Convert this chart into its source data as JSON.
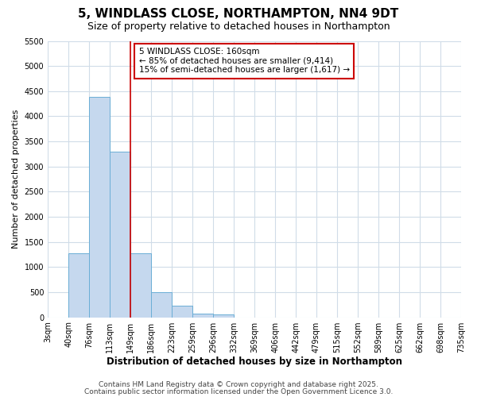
{
  "title": "5, WINDLASS CLOSE, NORTHAMPTON, NN4 9DT",
  "subtitle": "Size of property relative to detached houses in Northampton",
  "xlabel": "Distribution of detached houses by size in Northampton",
  "ylabel": "Number of detached properties",
  "annotation_line1": "5 WINDLASS CLOSE: 160sqm",
  "annotation_line2": "← 85% of detached houses are smaller (9,414)",
  "annotation_line3": "15% of semi-detached houses are larger (1,617) →",
  "footnote1": "Contains HM Land Registry data © Crown copyright and database right 2025.",
  "footnote2": "Contains public sector information licensed under the Open Government Licence 3.0.",
  "bin_labels": [
    "3sqm",
    "40sqm",
    "76sqm",
    "113sqm",
    "149sqm",
    "186sqm",
    "223sqm",
    "259sqm",
    "296sqm",
    "332sqm",
    "369sqm",
    "406sqm",
    "442sqm",
    "479sqm",
    "515sqm",
    "552sqm",
    "589sqm",
    "625sqm",
    "662sqm",
    "698sqm",
    "735sqm"
  ],
  "bar_heights": [
    0,
    1270,
    4380,
    3300,
    1280,
    500,
    230,
    75,
    50,
    0,
    0,
    0,
    0,
    0,
    0,
    0,
    0,
    0,
    0,
    0
  ],
  "bar_color": "#c5d8ee",
  "bar_edge_color": "#6baed6",
  "red_line_bin_index": 4,
  "ylim": [
    0,
    5500
  ],
  "yticks": [
    0,
    500,
    1000,
    1500,
    2000,
    2500,
    3000,
    3500,
    4000,
    4500,
    5000,
    5500
  ],
  "background_color": "#ffffff",
  "grid_color": "#d0dce8",
  "annotation_box_facecolor": "#ffffff",
  "annotation_box_edgecolor": "#cc0000",
  "red_line_color": "#cc0000",
  "title_fontsize": 11,
  "subtitle_fontsize": 9,
  "xlabel_fontsize": 8.5,
  "ylabel_fontsize": 8,
  "tick_fontsize": 7,
  "annotation_fontsize": 7.5,
  "footnote_fontsize": 6.5
}
